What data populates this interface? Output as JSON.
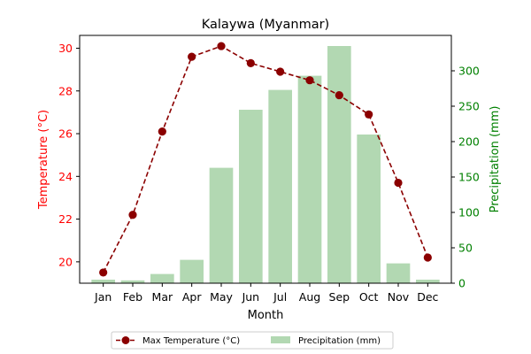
{
  "chart_data": {
    "type": "bar+line",
    "title": "Kalaywa (Myanmar)",
    "xlabel": "Month",
    "categories": [
      "Jan",
      "Feb",
      "Mar",
      "Apr",
      "May",
      "Jun",
      "Jul",
      "Aug",
      "Sep",
      "Oct",
      "Nov",
      "Dec"
    ],
    "left_axis": {
      "label": "Temperature (°C)",
      "color": "#ff0000",
      "ylim": [
        19.0,
        30.6
      ],
      "ticks": [
        20,
        22,
        24,
        26,
        28,
        30
      ]
    },
    "right_axis": {
      "label": "Precipitation (mm)",
      "color": "#008000",
      "ylim": [
        0,
        350
      ],
      "ticks": [
        0,
        50,
        100,
        150,
        200,
        250,
        300
      ]
    },
    "series": [
      {
        "name": "Max Temperature (°C)",
        "kind": "line",
        "axis": "left",
        "color": "#8b0000",
        "style": "dashed",
        "marker": "circle",
        "values": [
          19.5,
          22.2,
          26.1,
          29.6,
          30.1,
          29.3,
          28.9,
          28.5,
          27.8,
          26.9,
          23.7,
          20.2
        ]
      },
      {
        "name": "Precipitation (mm)",
        "kind": "bar",
        "axis": "right",
        "color": "#b2d8b2",
        "values": [
          5,
          4,
          13,
          33,
          163,
          245,
          273,
          293,
          335,
          210,
          28,
          5
        ]
      }
    ],
    "legend": {
      "placement": "bottom-center",
      "columns": 2
    },
    "grid": false
  }
}
